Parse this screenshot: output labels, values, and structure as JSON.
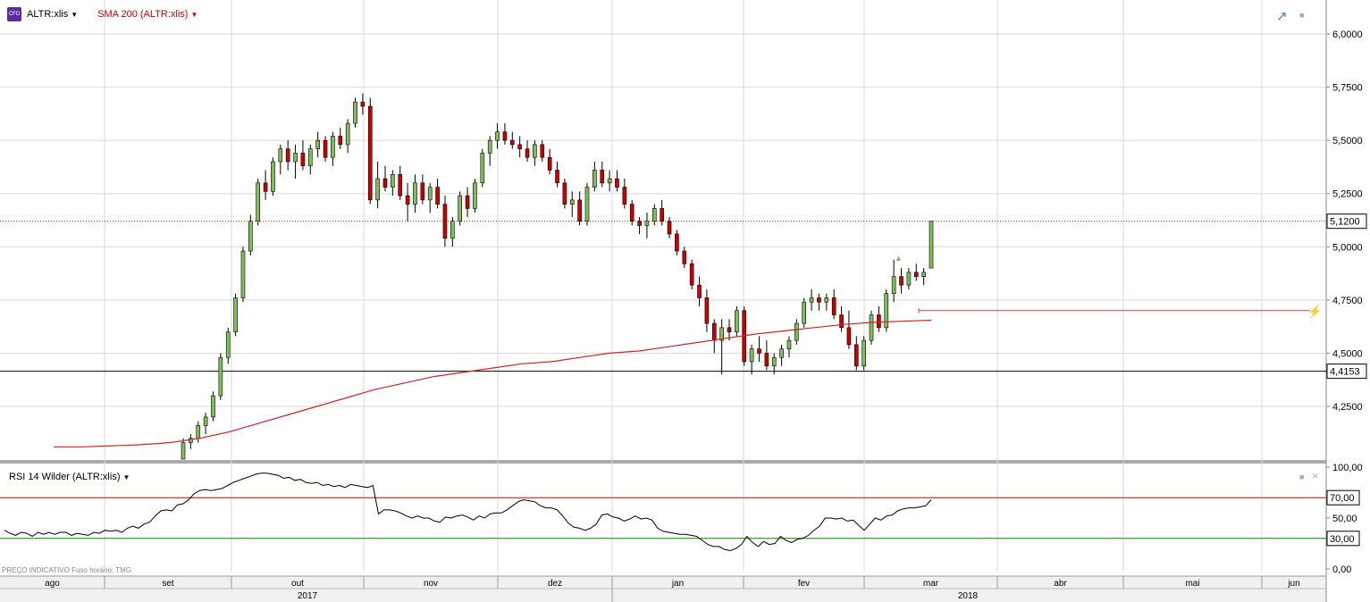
{
  "header": {
    "symbol": "ALTR:xlis",
    "icon_text": "CFD",
    "overlay": "SMA 200 (ALTR:xlis)",
    "caret": "▼"
  },
  "rsi_panel": {
    "label": "RSI 14 Wilder (ALTR:xlis)"
  },
  "footnote": "PREÇO INDICATIVO   Fuso horário: TMG",
  "colors": {
    "up": "#7fbf5a",
    "down": "#cc0000",
    "sma": "#e02020",
    "rsi_upper": "#cc0000",
    "rsi_lower": "#008800",
    "grid": "#d9d9d9"
  },
  "chart_data": [
    {
      "type": "candlestick",
      "title": "",
      "ylim": [
        4.0,
        6.1
      ],
      "y_ticks": [
        "6,0000",
        "5,7500",
        "5,5000",
        "5,2500",
        "5,0000",
        "4,7500",
        "4,5000",
        "4,2500"
      ],
      "y_tick_values": [
        6.0,
        5.75,
        5.5,
        5.25,
        5.0,
        4.75,
        4.5,
        4.25
      ],
      "last_price_label": "5,1200",
      "last_price": 5.12,
      "support_label": "4,4153",
      "support": 4.4153,
      "alert_level": 4.7,
      "months": [
        "ago",
        "set",
        "out",
        "nov",
        "dez",
        "jan",
        "fev",
        "mar",
        "abr",
        "mai",
        "jun"
      ],
      "years": [
        "2017",
        "2018"
      ],
      "candles": [
        [
          4.0,
          4.1,
          3.98,
          4.08
        ],
        [
          4.08,
          4.12,
          4.05,
          4.1
        ],
        [
          4.1,
          4.18,
          4.08,
          4.16
        ],
        [
          4.16,
          4.22,
          4.12,
          4.2
        ],
        [
          4.2,
          4.32,
          4.18,
          4.3
        ],
        [
          4.3,
          4.5,
          4.28,
          4.48
        ],
        [
          4.48,
          4.62,
          4.45,
          4.6
        ],
        [
          4.6,
          4.78,
          4.58,
          4.76
        ],
        [
          4.76,
          5.0,
          4.74,
          4.98
        ],
        [
          4.98,
          5.15,
          4.96,
          5.12
        ],
        [
          5.12,
          5.32,
          5.1,
          5.3
        ],
        [
          5.3,
          5.36,
          5.22,
          5.26
        ],
        [
          5.26,
          5.42,
          5.24,
          5.4
        ],
        [
          5.4,
          5.48,
          5.34,
          5.46
        ],
        [
          5.46,
          5.5,
          5.36,
          5.4
        ],
        [
          5.4,
          5.48,
          5.32,
          5.44
        ],
        [
          5.44,
          5.5,
          5.36,
          5.38
        ],
        [
          5.38,
          5.48,
          5.34,
          5.46
        ],
        [
          5.46,
          5.54,
          5.42,
          5.5
        ],
        [
          5.5,
          5.52,
          5.4,
          5.42
        ],
        [
          5.42,
          5.54,
          5.38,
          5.52
        ],
        [
          5.52,
          5.56,
          5.46,
          5.48
        ],
        [
          5.48,
          5.6,
          5.44,
          5.58
        ],
        [
          5.58,
          5.7,
          5.56,
          5.68
        ],
        [
          5.68,
          5.72,
          5.62,
          5.66
        ],
        [
          5.66,
          5.7,
          5.2,
          5.22
        ],
        [
          5.22,
          5.4,
          5.18,
          5.32
        ],
        [
          5.32,
          5.38,
          5.26,
          5.28
        ],
        [
          5.28,
          5.36,
          5.24,
          5.34
        ],
        [
          5.34,
          5.38,
          5.22,
          5.24
        ],
        [
          5.24,
          5.3,
          5.12,
          5.2
        ],
        [
          5.2,
          5.34,
          5.16,
          5.3
        ],
        [
          5.3,
          5.34,
          5.2,
          5.22
        ],
        [
          5.22,
          5.3,
          5.16,
          5.28
        ],
        [
          5.28,
          5.32,
          5.18,
          5.2
        ],
        [
          5.2,
          5.24,
          5.0,
          5.04
        ],
        [
          5.04,
          5.14,
          5.0,
          5.12
        ],
        [
          5.12,
          5.26,
          5.1,
          5.24
        ],
        [
          5.24,
          5.28,
          5.14,
          5.18
        ],
        [
          5.18,
          5.32,
          5.16,
          5.3
        ],
        [
          5.3,
          5.46,
          5.28,
          5.44
        ],
        [
          5.44,
          5.52,
          5.38,
          5.5
        ],
        [
          5.5,
          5.58,
          5.46,
          5.54
        ],
        [
          5.54,
          5.58,
          5.48,
          5.5
        ],
        [
          5.5,
          5.54,
          5.46,
          5.48
        ],
        [
          5.48,
          5.52,
          5.42,
          5.46
        ],
        [
          5.46,
          5.5,
          5.4,
          5.42
        ],
        [
          5.42,
          5.5,
          5.38,
          5.48
        ],
        [
          5.48,
          5.5,
          5.4,
          5.42
        ],
        [
          5.42,
          5.46,
          5.34,
          5.36
        ],
        [
          5.36,
          5.4,
          5.28,
          5.3
        ],
        [
          5.3,
          5.32,
          5.18,
          5.2
        ],
        [
          5.2,
          5.26,
          5.14,
          5.22
        ],
        [
          5.22,
          5.26,
          5.1,
          5.12
        ],
        [
          5.12,
          5.3,
          5.1,
          5.28
        ],
        [
          5.28,
          5.4,
          5.26,
          5.36
        ],
        [
          5.36,
          5.4,
          5.28,
          5.3
        ],
        [
          5.3,
          5.36,
          5.26,
          5.32
        ],
        [
          5.32,
          5.36,
          5.26,
          5.28
        ],
        [
          5.28,
          5.32,
          5.18,
          5.2
        ],
        [
          5.2,
          5.22,
          5.1,
          5.12
        ],
        [
          5.12,
          5.14,
          5.06,
          5.1
        ],
        [
          5.1,
          5.16,
          5.04,
          5.12
        ],
        [
          5.12,
          5.2,
          5.1,
          5.18
        ],
        [
          5.18,
          5.22,
          5.1,
          5.12
        ],
        [
          5.12,
          5.14,
          5.04,
          5.06
        ],
        [
          5.06,
          5.08,
          4.96,
          4.98
        ],
        [
          4.98,
          5.0,
          4.9,
          4.92
        ],
        [
          4.92,
          4.94,
          4.8,
          4.82
        ],
        [
          4.82,
          4.86,
          4.72,
          4.76
        ],
        [
          4.76,
          4.8,
          4.6,
          4.64
        ],
        [
          4.64,
          4.66,
          4.5,
          4.56
        ],
        [
          4.56,
          4.66,
          4.4,
          4.62
        ],
        [
          4.62,
          4.66,
          4.56,
          4.6
        ],
        [
          4.6,
          4.72,
          4.58,
          4.7
        ],
        [
          4.7,
          4.72,
          4.44,
          4.46
        ],
        [
          4.46,
          4.54,
          4.4,
          4.52
        ],
        [
          4.52,
          4.58,
          4.46,
          4.5
        ],
        [
          4.5,
          4.56,
          4.42,
          4.44
        ],
        [
          4.44,
          4.5,
          4.4,
          4.48
        ],
        [
          4.48,
          4.54,
          4.44,
          4.52
        ],
        [
          4.52,
          4.58,
          4.48,
          4.56
        ],
        [
          4.56,
          4.66,
          4.54,
          4.64
        ],
        [
          4.64,
          4.76,
          4.62,
          4.74
        ],
        [
          4.74,
          4.8,
          4.7,
          4.76
        ],
        [
          4.76,
          4.78,
          4.7,
          4.74
        ],
        [
          4.74,
          4.78,
          4.7,
          4.76
        ],
        [
          4.76,
          4.8,
          4.66,
          4.68
        ],
        [
          4.68,
          4.72,
          4.6,
          4.62
        ],
        [
          4.62,
          4.7,
          4.52,
          4.54
        ],
        [
          4.54,
          4.58,
          4.42,
          4.44
        ],
        [
          4.44,
          4.58,
          4.42,
          4.56
        ],
        [
          4.56,
          4.7,
          4.54,
          4.68
        ],
        [
          4.68,
          4.72,
          4.6,
          4.62
        ],
        [
          4.62,
          4.8,
          4.6,
          4.78
        ],
        [
          4.78,
          4.94,
          4.74,
          4.86
        ],
        [
          4.86,
          4.9,
          4.78,
          4.82
        ],
        [
          4.82,
          4.9,
          4.8,
          4.88
        ],
        [
          4.88,
          4.92,
          4.84,
          4.86
        ],
        [
          4.86,
          4.9,
          4.82,
          4.88
        ],
        [
          4.9,
          5.12,
          4.9,
          5.12
        ]
      ],
      "sma_200": [
        4.06,
        4.06,
        4.065,
        4.07,
        4.08,
        4.1,
        4.13,
        4.17,
        4.21,
        4.25,
        4.29,
        4.33,
        4.36,
        4.39,
        4.41,
        4.43,
        4.45,
        4.46,
        4.48,
        4.5,
        4.51,
        4.53,
        4.55,
        4.57,
        4.59,
        4.605,
        4.62,
        4.635,
        4.645,
        4.65,
        4.655
      ],
      "rsi_14": {
        "ylim": [
          0,
          100
        ],
        "y_ticks": [
          "100,00",
          "70,00",
          "50,00",
          "0,00"
        ],
        "upper": 70,
        "lower": 30,
        "upper_label": "70,00",
        "lower_label": "30,00",
        "values": [
          38,
          35,
          33,
          36,
          35,
          32,
          36,
          34,
          36,
          34,
          36,
          36,
          33,
          35,
          34,
          33,
          36,
          35,
          38,
          37,
          38,
          36,
          40,
          42,
          40,
          44,
          46,
          52,
          57,
          58,
          57,
          63,
          64,
          68,
          74,
          77,
          78,
          77,
          78,
          79,
          82,
          85,
          87,
          89,
          91,
          93,
          94,
          94,
          93,
          92,
          89,
          90,
          87,
          88,
          85,
          84,
          85,
          82,
          83,
          81,
          82,
          80,
          83,
          82,
          81,
          80,
          82,
          54,
          58,
          58,
          57,
          55,
          52,
          50,
          52,
          50,
          50,
          47,
          46,
          51,
          50,
          52,
          53,
          51,
          48,
          52,
          50,
          54,
          55,
          55,
          58,
          62,
          66,
          68,
          67,
          66,
          62,
          60,
          60,
          58,
          52,
          45,
          41,
          40,
          38,
          40,
          44,
          53,
          54,
          51,
          50,
          47,
          49,
          52,
          49,
          50,
          48,
          40,
          37,
          36,
          35,
          34,
          34,
          33,
          32,
          28,
          24,
          22,
          22,
          19,
          18,
          20,
          24,
          32,
          26,
          22,
          27,
          24,
          25,
          32,
          28,
          26,
          29,
          30,
          33,
          38,
          42,
          50,
          50,
          49,
          50,
          47,
          48,
          43,
          38,
          44,
          50,
          48,
          52,
          53,
          57,
          59,
          60,
          60,
          61,
          62,
          68
        ]
      }
    }
  ]
}
